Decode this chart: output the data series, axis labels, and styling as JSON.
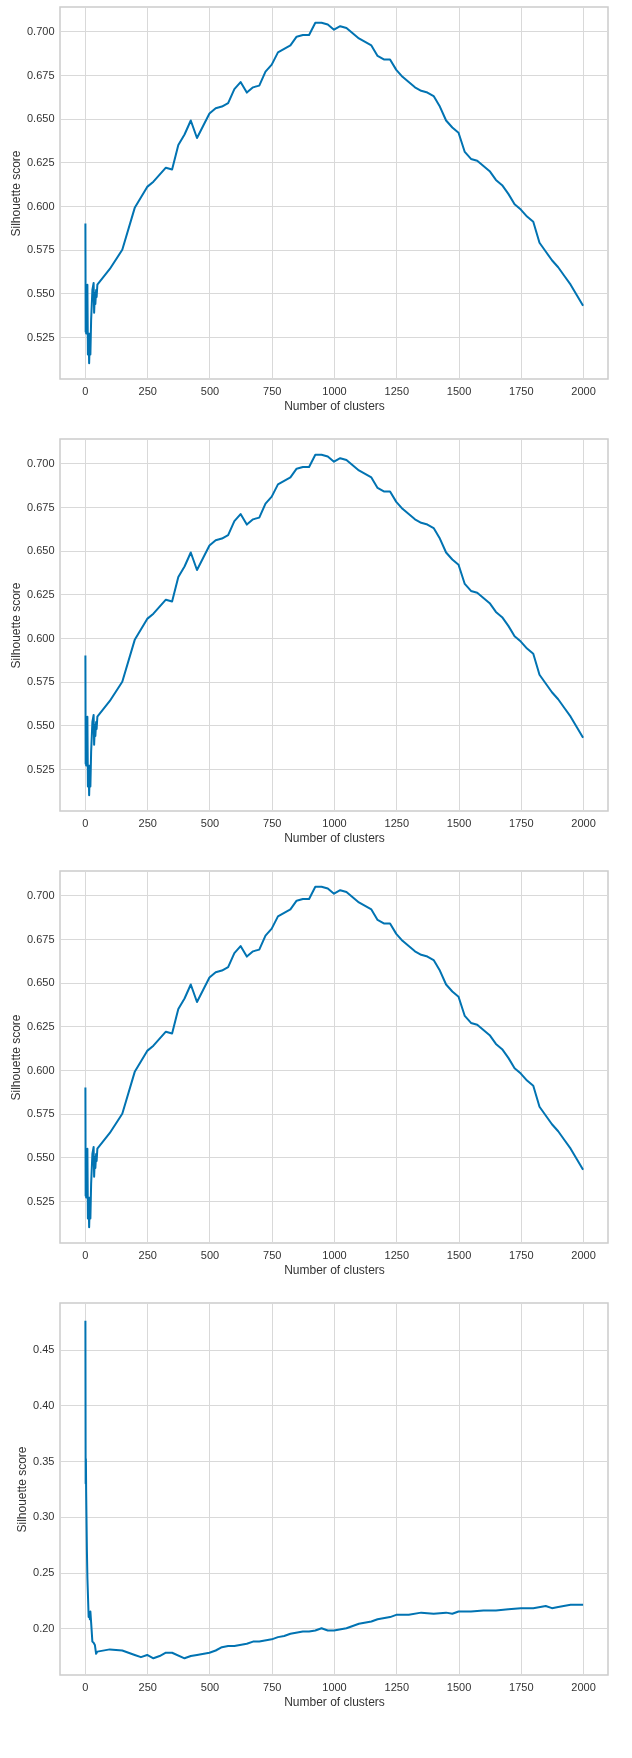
{
  "chart_data": [
    {
      "type": "line",
      "xlabel": "Number of clusters",
      "ylabel": "Silhouette score",
      "xlim": [
        -100,
        2100
      ],
      "ylim": [
        0.501,
        0.714
      ],
      "xticks": [
        0,
        250,
        500,
        750,
        1000,
        1250,
        1500,
        1750,
        2000
      ],
      "yticks": [
        {
          "value": 0.525,
          "label": "0.525"
        },
        {
          "value": 0.55,
          "label": "0.550"
        },
        {
          "value": 0.575,
          "label": "0.575"
        },
        {
          "value": 0.6,
          "label": "0.600"
        },
        {
          "value": 0.625,
          "label": "0.625"
        },
        {
          "value": 0.65,
          "label": "0.650"
        },
        {
          "value": 0.675,
          "label": "0.675"
        },
        {
          "value": 0.7,
          "label": "0.700"
        }
      ],
      "grid": true,
      "marker": "none",
      "line_style": "solid",
      "series": [
        {
          "color": "#0173b2",
          "x": [
            2,
            3,
            4,
            5,
            6,
            8,
            10,
            12,
            15,
            17,
            20,
            22,
            25,
            30,
            35,
            37,
            40,
            42,
            45,
            47,
            50,
            100,
            150,
            200,
            250,
            275,
            300,
            325,
            350,
            375,
            400,
            425,
            450,
            475,
            500,
            525,
            550,
            575,
            600,
            625,
            650,
            675,
            700,
            725,
            750,
            775,
            800,
            825,
            850,
            875,
            900,
            925,
            950,
            975,
            1000,
            1025,
            1050,
            1075,
            1100,
            1125,
            1150,
            1175,
            1200,
            1225,
            1250,
            1275,
            1300,
            1325,
            1350,
            1375,
            1400,
            1425,
            1450,
            1475,
            1500,
            1525,
            1550,
            1575,
            1600,
            1625,
            1650,
            1675,
            1700,
            1725,
            1750,
            1775,
            1800,
            1825,
            1850,
            1875,
            1900,
            1925,
            1950,
            1975,
            2000
          ],
          "values": [
            0.59,
            0.528,
            0.548,
            0.527,
            0.555,
            0.53,
            0.555,
            0.515,
            0.527,
            0.51,
            0.527,
            0.515,
            0.535,
            0.552,
            0.556,
            0.539,
            0.55,
            0.544,
            0.552,
            0.548,
            0.555,
            0.564,
            0.575,
            0.599,
            0.611,
            0.614,
            0.618,
            0.622,
            0.621,
            0.635,
            0.641,
            0.649,
            0.639,
            0.646,
            0.653,
            0.656,
            0.657,
            0.659,
            0.667,
            0.671,
            0.665,
            0.668,
            0.669,
            0.677,
            0.681,
            0.688,
            0.69,
            0.692,
            0.697,
            0.698,
            0.698,
            0.705,
            0.705,
            0.704,
            0.701,
            0.703,
            0.702,
            0.699,
            0.696,
            0.694,
            0.692,
            0.686,
            0.684,
            0.684,
            0.678,
            0.674,
            0.671,
            0.668,
            0.666,
            0.665,
            0.663,
            0.657,
            0.649,
            0.645,
            0.642,
            0.631,
            0.627,
            0.626,
            0.623,
            0.62,
            0.615,
            0.612,
            0.607,
            0.601,
            0.598,
            0.594,
            0.591,
            0.579,
            0.574,
            0.569,
            0.565,
            0.56,
            0.555,
            0.549,
            0.543
          ]
        }
      ]
    },
    {
      "type": "line",
      "xlabel": "Number of clusters",
      "ylabel": "Silhouette score",
      "xlim": [
        -100,
        2100
      ],
      "ylim": [
        0.501,
        0.714
      ],
      "xticks": [
        0,
        250,
        500,
        750,
        1000,
        1250,
        1500,
        1750,
        2000
      ],
      "yticks": [
        {
          "value": 0.525,
          "label": "0.525"
        },
        {
          "value": 0.55,
          "label": "0.550"
        },
        {
          "value": 0.575,
          "label": "0.575"
        },
        {
          "value": 0.6,
          "label": "0.600"
        },
        {
          "value": 0.625,
          "label": "0.625"
        },
        {
          "value": 0.65,
          "label": "0.650"
        },
        {
          "value": 0.675,
          "label": "0.675"
        },
        {
          "value": 0.7,
          "label": "0.700"
        }
      ],
      "grid": true,
      "marker": "none",
      "line_style": "solid",
      "series": [
        {
          "color": "#0173b2",
          "x": [
            2,
            3,
            4,
            5,
            6,
            8,
            10,
            12,
            15,
            17,
            20,
            22,
            25,
            30,
            35,
            37,
            40,
            42,
            45,
            47,
            50,
            100,
            150,
            200,
            250,
            275,
            300,
            325,
            350,
            375,
            400,
            425,
            450,
            475,
            500,
            525,
            550,
            575,
            600,
            625,
            650,
            675,
            700,
            725,
            750,
            775,
            800,
            825,
            850,
            875,
            900,
            925,
            950,
            975,
            1000,
            1025,
            1050,
            1075,
            1100,
            1125,
            1150,
            1175,
            1200,
            1225,
            1250,
            1275,
            1300,
            1325,
            1350,
            1375,
            1400,
            1425,
            1450,
            1475,
            1500,
            1525,
            1550,
            1575,
            1600,
            1625,
            1650,
            1675,
            1700,
            1725,
            1750,
            1775,
            1800,
            1825,
            1850,
            1875,
            1900,
            1925,
            1950,
            1975,
            2000
          ],
          "values": [
            0.59,
            0.528,
            0.548,
            0.527,
            0.555,
            0.53,
            0.555,
            0.515,
            0.527,
            0.51,
            0.527,
            0.515,
            0.535,
            0.552,
            0.556,
            0.539,
            0.55,
            0.544,
            0.552,
            0.548,
            0.555,
            0.564,
            0.575,
            0.599,
            0.611,
            0.614,
            0.618,
            0.622,
            0.621,
            0.635,
            0.641,
            0.649,
            0.639,
            0.646,
            0.653,
            0.656,
            0.657,
            0.659,
            0.667,
            0.671,
            0.665,
            0.668,
            0.669,
            0.677,
            0.681,
            0.688,
            0.69,
            0.692,
            0.697,
            0.698,
            0.698,
            0.705,
            0.705,
            0.704,
            0.701,
            0.703,
            0.702,
            0.699,
            0.696,
            0.694,
            0.692,
            0.686,
            0.684,
            0.684,
            0.678,
            0.674,
            0.671,
            0.668,
            0.666,
            0.665,
            0.663,
            0.657,
            0.649,
            0.645,
            0.642,
            0.631,
            0.627,
            0.626,
            0.623,
            0.62,
            0.615,
            0.612,
            0.607,
            0.601,
            0.598,
            0.594,
            0.591,
            0.579,
            0.574,
            0.569,
            0.565,
            0.56,
            0.555,
            0.549,
            0.543
          ]
        }
      ]
    },
    {
      "type": "line",
      "xlabel": "Number of clusters",
      "ylabel": "Silhouette score",
      "xlim": [
        -100,
        2100
      ],
      "ylim": [
        0.501,
        0.714
      ],
      "xticks": [
        0,
        250,
        500,
        750,
        1000,
        1250,
        1500,
        1750,
        2000
      ],
      "yticks": [
        {
          "value": 0.525,
          "label": "0.525"
        },
        {
          "value": 0.55,
          "label": "0.550"
        },
        {
          "value": 0.575,
          "label": "0.575"
        },
        {
          "value": 0.6,
          "label": "0.600"
        },
        {
          "value": 0.625,
          "label": "0.625"
        },
        {
          "value": 0.65,
          "label": "0.650"
        },
        {
          "value": 0.675,
          "label": "0.675"
        },
        {
          "value": 0.7,
          "label": "0.700"
        }
      ],
      "grid": true,
      "marker": "none",
      "line_style": "solid",
      "series": [
        {
          "color": "#0173b2",
          "x": [
            2,
            3,
            4,
            5,
            6,
            8,
            10,
            12,
            15,
            17,
            20,
            22,
            25,
            30,
            35,
            37,
            40,
            42,
            45,
            47,
            50,
            100,
            150,
            200,
            250,
            275,
            300,
            325,
            350,
            375,
            400,
            425,
            450,
            475,
            500,
            525,
            550,
            575,
            600,
            625,
            650,
            675,
            700,
            725,
            750,
            775,
            800,
            825,
            850,
            875,
            900,
            925,
            950,
            975,
            1000,
            1025,
            1050,
            1075,
            1100,
            1125,
            1150,
            1175,
            1200,
            1225,
            1250,
            1275,
            1300,
            1325,
            1350,
            1375,
            1400,
            1425,
            1450,
            1475,
            1500,
            1525,
            1550,
            1575,
            1600,
            1625,
            1650,
            1675,
            1700,
            1725,
            1750,
            1775,
            1800,
            1825,
            1850,
            1875,
            1900,
            1925,
            1950,
            1975,
            2000
          ],
          "values": [
            0.59,
            0.528,
            0.548,
            0.527,
            0.555,
            0.53,
            0.555,
            0.515,
            0.527,
            0.51,
            0.527,
            0.515,
            0.535,
            0.552,
            0.556,
            0.539,
            0.55,
            0.544,
            0.552,
            0.548,
            0.555,
            0.564,
            0.575,
            0.599,
            0.611,
            0.614,
            0.618,
            0.622,
            0.621,
            0.635,
            0.641,
            0.649,
            0.639,
            0.646,
            0.653,
            0.656,
            0.657,
            0.659,
            0.667,
            0.671,
            0.665,
            0.668,
            0.669,
            0.677,
            0.681,
            0.688,
            0.69,
            0.692,
            0.697,
            0.698,
            0.698,
            0.705,
            0.705,
            0.704,
            0.701,
            0.703,
            0.702,
            0.699,
            0.696,
            0.694,
            0.692,
            0.686,
            0.684,
            0.684,
            0.678,
            0.674,
            0.671,
            0.668,
            0.666,
            0.665,
            0.663,
            0.657,
            0.649,
            0.645,
            0.642,
            0.631,
            0.627,
            0.626,
            0.623,
            0.62,
            0.615,
            0.612,
            0.607,
            0.601,
            0.598,
            0.594,
            0.591,
            0.579,
            0.574,
            0.569,
            0.565,
            0.56,
            0.555,
            0.549,
            0.543
          ]
        }
      ]
    },
    {
      "type": "line",
      "xlabel": "Number of clusters",
      "ylabel": "Silhouette score",
      "xlim": [
        -100,
        2100
      ],
      "ylim": [
        0.158,
        0.492
      ],
      "xticks": [
        0,
        250,
        500,
        750,
        1000,
        1250,
        1500,
        1750,
        2000
      ],
      "yticks": [
        {
          "value": 0.2,
          "label": "0.20"
        },
        {
          "value": 0.25,
          "label": "0.25"
        },
        {
          "value": 0.3,
          "label": "0.30"
        },
        {
          "value": 0.35,
          "label": "0.35"
        },
        {
          "value": 0.4,
          "label": "0.40"
        },
        {
          "value": 0.45,
          "label": "0.45"
        }
      ],
      "grid": true,
      "marker": "none",
      "line_style": "solid",
      "series": [
        {
          "color": "#0173b2",
          "x": [
            2,
            3,
            4,
            5,
            8,
            10,
            15,
            18,
            20,
            22,
            25,
            30,
            35,
            40,
            45,
            50,
            100,
            150,
            200,
            225,
            250,
            275,
            300,
            325,
            350,
            400,
            425,
            450,
            500,
            525,
            550,
            575,
            600,
            650,
            675,
            700,
            750,
            775,
            800,
            825,
            875,
            900,
            925,
            950,
            975,
            1000,
            1050,
            1100,
            1150,
            1175,
            1225,
            1250,
            1300,
            1350,
            1400,
            1450,
            1475,
            1500,
            1550,
            1600,
            1650,
            1700,
            1750,
            1800,
            1850,
            1875,
            1900,
            1950,
            2000
          ],
          "values": [
            0.476,
            0.33,
            0.352,
            0.323,
            0.27,
            0.245,
            0.21,
            0.214,
            0.208,
            0.215,
            0.205,
            0.188,
            0.187,
            0.185,
            0.177,
            0.179,
            0.181,
            0.18,
            0.176,
            0.174,
            0.176,
            0.173,
            0.175,
            0.178,
            0.178,
            0.173,
            0.175,
            0.176,
            0.178,
            0.18,
            0.183,
            0.184,
            0.184,
            0.186,
            0.188,
            0.188,
            0.19,
            0.192,
            0.193,
            0.195,
            0.197,
            0.197,
            0.198,
            0.2,
            0.198,
            0.198,
            0.2,
            0.204,
            0.206,
            0.208,
            0.21,
            0.212,
            0.212,
            0.214,
            0.213,
            0.214,
            0.213,
            0.215,
            0.215,
            0.216,
            0.216,
            0.217,
            0.218,
            0.218,
            0.22,
            0.218,
            0.219,
            0.221,
            0.221
          ]
        }
      ]
    }
  ]
}
